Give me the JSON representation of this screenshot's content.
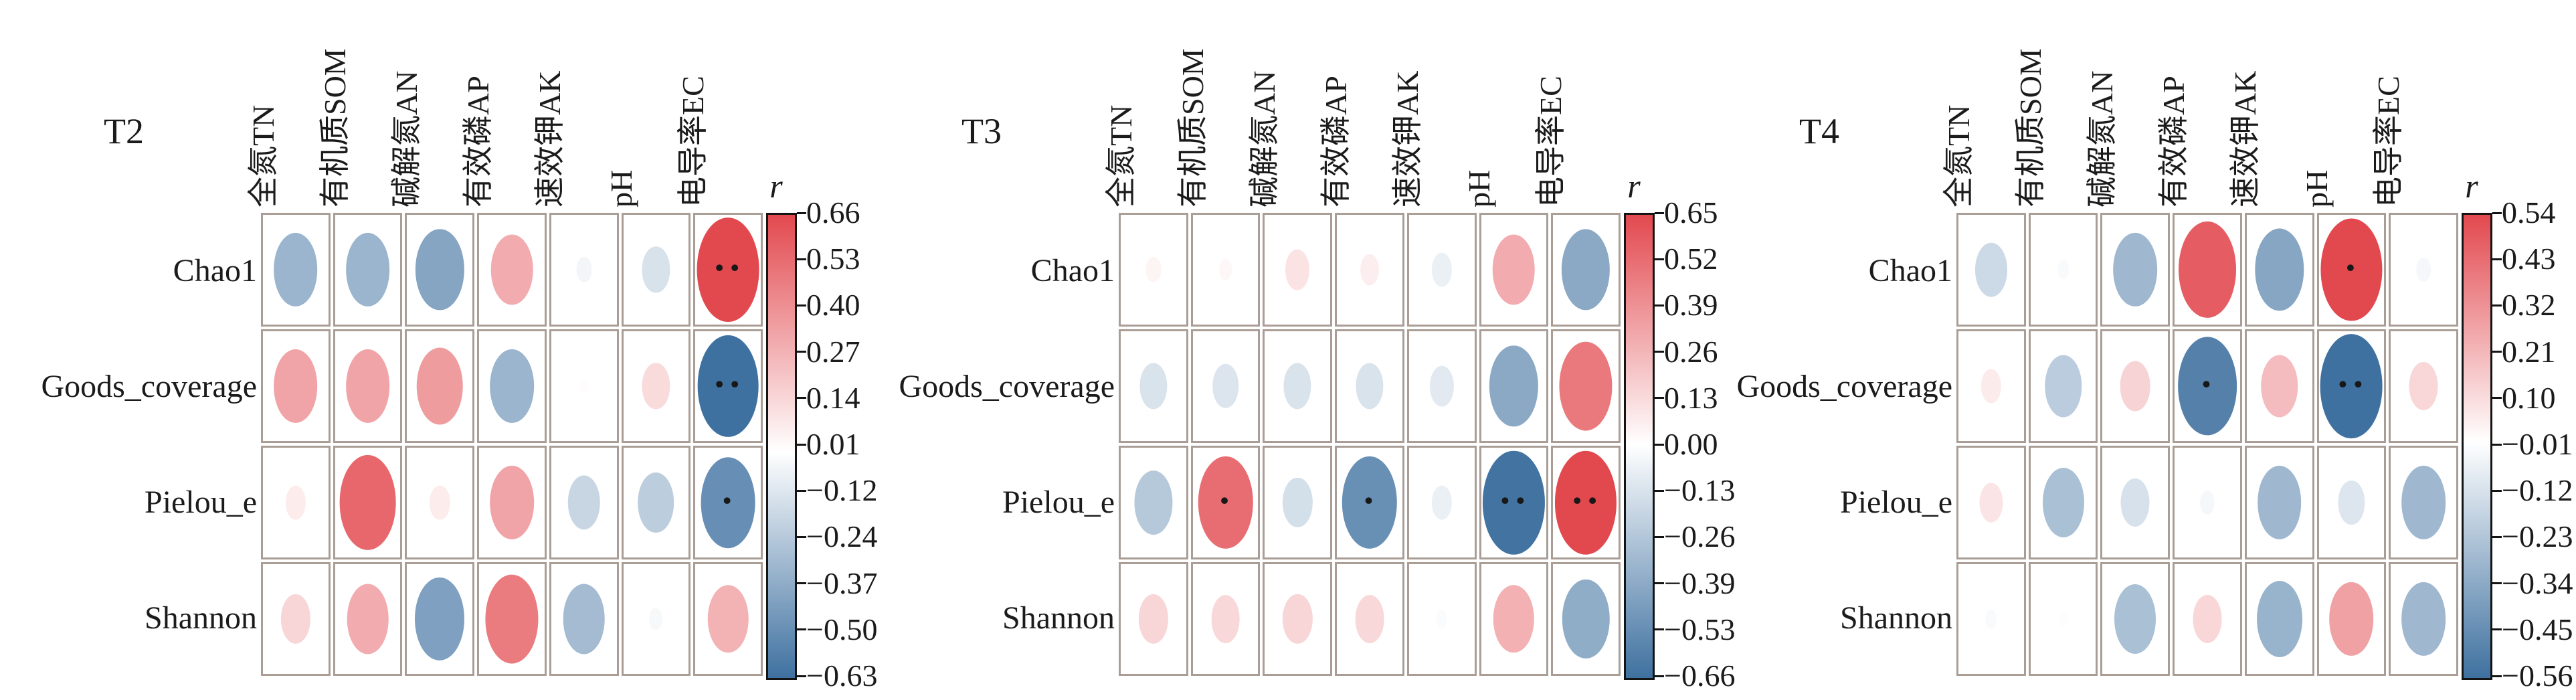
{
  "figure": {
    "description": "Correlation ellipse plots between soil properties and alpha-diversity indices for treatments T2, T3 and T4",
    "background": "#ffffff"
  },
  "colors": {
    "positive_max": "#e2494f",
    "negative_max": "#3f71a0",
    "zero": "#ffffff",
    "grid_border": "#a99d96",
    "colorbar_border": "#141414",
    "text": "#1b1b1b"
  },
  "chart_data": [
    {
      "type": "heatmap",
      "title": "T2",
      "legend_title": "r",
      "rows": [
        "Chao1",
        "Goods_coverage",
        "Pielou_e",
        "Shannon"
      ],
      "cols": [
        "全氮TN",
        "有机质SOM",
        "碱解氮AN",
        "有效磷AP",
        "速效钾AK",
        "pH",
        "电导率EC"
      ],
      "scale_max": 0.66,
      "scale_min": -0.63,
      "colorbar_ticks": [
        "0.66",
        "0.53",
        "0.40",
        "0.27",
        "0.14",
        "0.01",
        "−0.12",
        "−0.24",
        "−0.37",
        "−0.50",
        "−0.63"
      ],
      "values": [
        [
          -0.33,
          -0.33,
          -0.4,
          0.3,
          -0.04,
          -0.13,
          0.66
        ],
        [
          0.33,
          0.33,
          0.36,
          -0.33,
          0.01,
          0.13,
          -0.63
        ],
        [
          0.07,
          0.55,
          0.07,
          0.33,
          -0.18,
          -0.22,
          -0.5
        ],
        [
          0.15,
          0.3,
          -0.42,
          0.48,
          -0.3,
          -0.03,
          0.28
        ]
      ],
      "significance": [
        [
          "",
          "",
          "",
          "",
          "",
          "",
          "**"
        ],
        [
          "",
          "",
          "",
          "",
          "",
          "",
          "**"
        ],
        [
          "",
          "",
          "",
          "",
          "",
          "",
          "*"
        ],
        [
          "",
          "",
          "",
          "",
          "",
          "",
          ""
        ]
      ]
    },
    {
      "type": "heatmap",
      "title": "T3",
      "legend_title": "r",
      "rows": [
        "Chao1",
        "Goods_coverage",
        "Pielou_e",
        "Shannon"
      ],
      "cols": [
        "全氮TN",
        "有机质SOM",
        "碱解氮AN",
        "有效磷AP",
        "速效钾AK",
        "pH",
        "电导率EC"
      ],
      "scale_max": 0.65,
      "scale_min": -0.66,
      "colorbar_ticks": [
        "0.65",
        "0.52",
        "0.39",
        "0.26",
        "0.13",
        "0.00",
        "−0.13",
        "−0.26",
        "−0.39",
        "−0.53",
        "−0.66"
      ],
      "values": [
        [
          0.04,
          0.03,
          0.1,
          0.06,
          -0.07,
          0.3,
          -0.4
        ],
        [
          -0.13,
          -0.12,
          -0.13,
          -0.13,
          -0.1,
          -0.4,
          0.48
        ],
        [
          -0.25,
          0.52,
          -0.15,
          -0.52,
          -0.07,
          -0.65,
          0.65
        ],
        [
          0.15,
          0.14,
          0.15,
          0.14,
          -0.02,
          0.28,
          -0.38
        ]
      ],
      "significance": [
        [
          "",
          "",
          "",
          "",
          "",
          "",
          ""
        ],
        [
          "",
          "",
          "",
          "",
          "",
          "",
          ""
        ],
        [
          "",
          "*",
          "",
          "*",
          "",
          "**",
          "**"
        ],
        [
          "",
          "",
          "",
          "",
          "",
          "",
          ""
        ]
      ]
    },
    {
      "type": "heatmap",
      "title": "T4",
      "legend_title": "r",
      "rows": [
        "Chao1",
        "Goods_coverage",
        "Pielou_e",
        "Shannon"
      ],
      "cols": [
        "全氮TN",
        "有机质SOM",
        "碱解氮AN",
        "有效磷AP",
        "速效钾AK",
        "pH",
        "电导率EC"
      ],
      "scale_max": 0.54,
      "scale_min": -0.56,
      "colorbar_ticks": [
        "0.54",
        "0.43",
        "0.32",
        "0.21",
        "0.10",
        "−0.01",
        "−0.12",
        "−0.23",
        "−0.34",
        "−0.45",
        "−0.56"
      ],
      "values": [
        [
          -0.15,
          -0.02,
          -0.28,
          0.48,
          -0.35,
          0.54,
          -0.03
        ],
        [
          0.06,
          -0.2,
          0.13,
          -0.5,
          0.2,
          -0.56,
          0.12
        ],
        [
          0.08,
          -0.25,
          -0.12,
          -0.03,
          -0.28,
          -0.1,
          -0.28
        ],
        [
          -0.02,
          0.01,
          -0.25,
          0.12,
          -0.3,
          0.28,
          -0.28
        ]
      ],
      "significance": [
        [
          "",
          "",
          "",
          "",
          "",
          "*",
          ""
        ],
        [
          "",
          "",
          "",
          "*",
          "",
          "**",
          ""
        ],
        [
          "",
          "",
          "",
          "",
          "",
          "",
          ""
        ],
        [
          "",
          "",
          "",
          "",
          "",
          "",
          ""
        ]
      ]
    }
  ]
}
